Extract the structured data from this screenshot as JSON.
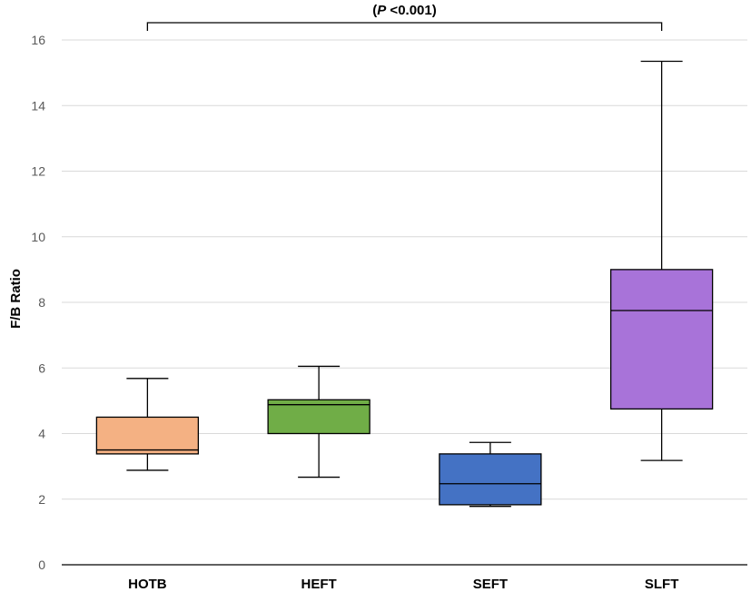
{
  "chart_data": {
    "type": "boxplot",
    "ylabel": "F/B Ratio",
    "ylim": [
      0,
      16
    ],
    "yticks": [
      "0",
      "2",
      "4",
      "6",
      "8",
      "10",
      "12",
      "14",
      "16"
    ],
    "grid": true,
    "annotation": {
      "text_italic": "P",
      "text_rest": " <0.001",
      "open": "(",
      "close": ")",
      "from_category": "HOTB",
      "to_category": "SLFT"
    },
    "categories": [
      "HOTB",
      "HEFT",
      "SEFT",
      "SLFT"
    ],
    "series": [
      {
        "category": "HOTB",
        "min": 2.88,
        "q1": 3.38,
        "median": 3.5,
        "q3": 4.5,
        "max": 5.68,
        "color": "#F4B183"
      },
      {
        "category": "HEFT",
        "min": 2.67,
        "q1": 4.0,
        "median": 4.88,
        "q3": 5.03,
        "max": 6.05,
        "color": "#70AD47"
      },
      {
        "category": "SEFT",
        "min": 1.78,
        "q1": 1.83,
        "median": 2.47,
        "q3": 3.38,
        "max": 3.73,
        "color": "#4472C4"
      },
      {
        "category": "SLFT",
        "min": 3.18,
        "q1": 4.75,
        "median": 7.75,
        "q3": 9.0,
        "max": 15.35,
        "color": "#A873D9"
      }
    ]
  }
}
